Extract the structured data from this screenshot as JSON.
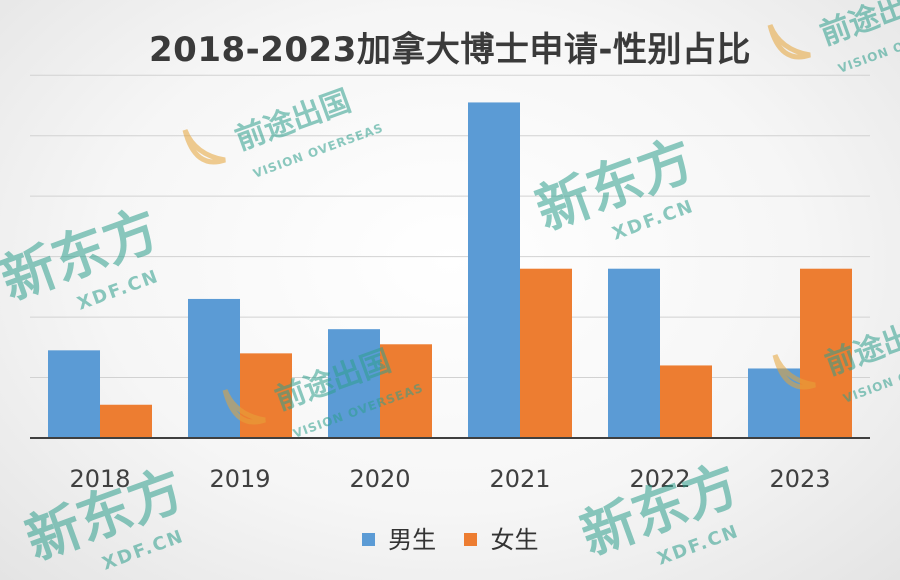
{
  "chart_data": {
    "type": "bar",
    "title": "2018-2023加拿大博士申请-性别占比",
    "categories": [
      "2018",
      "2019",
      "2020",
      "2021",
      "2022",
      "2023"
    ],
    "series": [
      {
        "name": "男生",
        "color": "#5b9bd5",
        "values": [
          29,
          46,
          36,
          111,
          56,
          23
        ]
      },
      {
        "name": "女生",
        "color": "#ed7d31",
        "values": [
          11,
          28,
          31,
          56,
          24,
          56
        ]
      }
    ],
    "ylim": [
      0,
      130
    ],
    "grid": true,
    "legend_position": "bottom"
  },
  "watermarks": {
    "brand": "新东方",
    "brand_url": "XDF.CN",
    "partner": "前途出国",
    "partner_en": "VISION OVERSEAS"
  }
}
